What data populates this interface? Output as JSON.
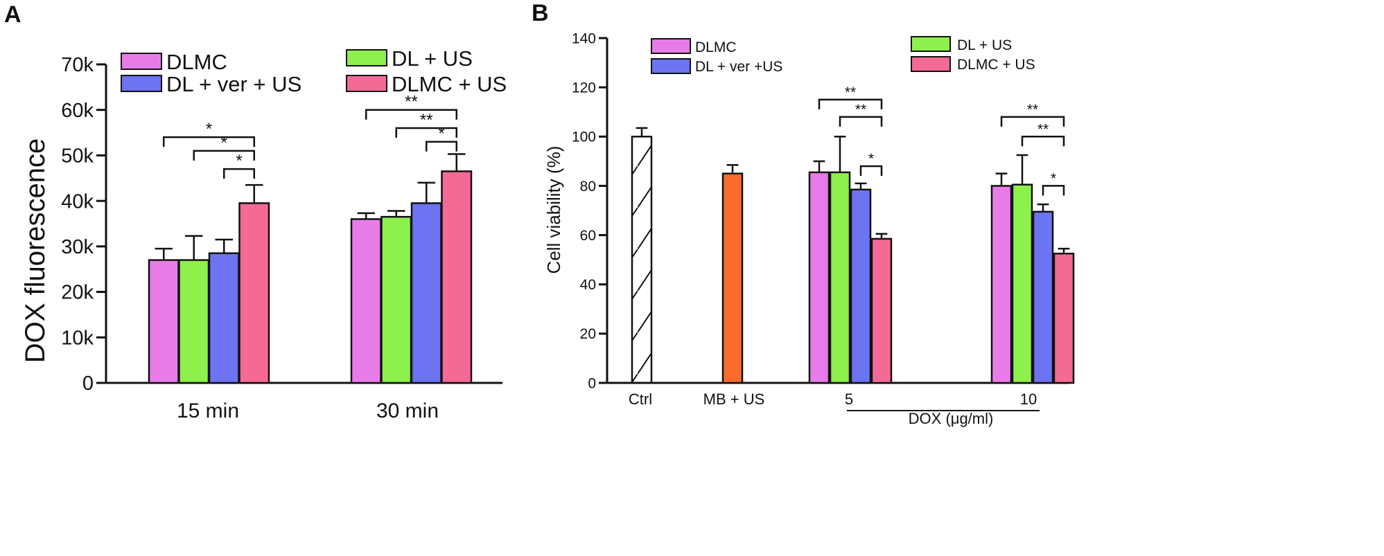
{
  "colors": {
    "dlmc": "#e77be8",
    "dl_us": "#8ef04d",
    "dl_ver_us": "#6c74f2",
    "dlmc_us": "#f56a94",
    "mb_us": "#f96b2c",
    "ctrl": "#ffffff",
    "axis": "#111111"
  },
  "chart_data": [
    {
      "panel": "A",
      "type": "bar",
      "title": "",
      "xlabel": "",
      "ylabel": "DOX fluorescence",
      "ylim": [
        0,
        70000
      ],
      "ticks": [
        {
          "value": 0,
          "label": "0"
        },
        {
          "value": 10000,
          "label": "10k"
        },
        {
          "value": 20000,
          "label": "20k"
        },
        {
          "value": 30000,
          "label": "30k"
        },
        {
          "value": 40000,
          "label": "40k"
        },
        {
          "value": 50000,
          "label": "50k"
        },
        {
          "value": 60000,
          "label": "60k"
        },
        {
          "value": 70000,
          "label": "70k"
        }
      ],
      "categories": [
        "15 min",
        "30 min"
      ],
      "legend": [
        {
          "name": "DLMC",
          "color_key": "dlmc"
        },
        {
          "name": "DL + US",
          "color_key": "dl_us"
        },
        {
          "name": "DL + ver + US",
          "color_key": "dl_ver_us"
        },
        {
          "name": "DLMC + US",
          "color_key": "dlmc_us"
        }
      ],
      "series": [
        {
          "name": "DLMC",
          "color_key": "dlmc",
          "values": [
            27000,
            36000
          ],
          "errors": [
            2500,
            1300
          ]
        },
        {
          "name": "DL + US",
          "color_key": "dl_us",
          "values": [
            27000,
            36500
          ],
          "errors": [
            5300,
            1300
          ]
        },
        {
          "name": "DL + ver + US",
          "color_key": "dl_ver_us",
          "values": [
            28500,
            39500
          ],
          "errors": [
            3000,
            4500
          ]
        },
        {
          "name": "DLMC + US",
          "color_key": "dlmc_us",
          "values": [
            39500,
            46500
          ],
          "errors": [
            4000,
            3800
          ]
        }
      ],
      "significance": [
        {
          "group": 0,
          "from": 0,
          "to": 3,
          "y": 54000,
          "label": "*"
        },
        {
          "group": 0,
          "from": 1,
          "to": 3,
          "y": 51000,
          "label": "*"
        },
        {
          "group": 0,
          "from": 2,
          "to": 3,
          "y": 47000,
          "label": "*"
        },
        {
          "group": 1,
          "from": 0,
          "to": 3,
          "y": 60000,
          "label": "**"
        },
        {
          "group": 1,
          "from": 1,
          "to": 3,
          "y": 56000,
          "label": "**"
        },
        {
          "group": 1,
          "from": 2,
          "to": 3,
          "y": 53000,
          "label": "*"
        }
      ]
    },
    {
      "panel": "B",
      "type": "bar",
      "title": "",
      "xlabel": "DOX (μg/ml)",
      "ylabel": "Cell viability (%)",
      "ylim": [
        0,
        140
      ],
      "ticks": [
        {
          "value": 0,
          "label": "0"
        },
        {
          "value": 20,
          "label": "20"
        },
        {
          "value": 40,
          "label": "40"
        },
        {
          "value": 60,
          "label": "60"
        },
        {
          "value": 80,
          "label": "80"
        },
        {
          "value": 100,
          "label": "100"
        },
        {
          "value": 120,
          "label": "120"
        },
        {
          "value": 140,
          "label": "140"
        }
      ],
      "categories": [
        "Ctrl",
        "MB + US",
        "5",
        "10"
      ],
      "legend": [
        {
          "name": "DLMC",
          "color_key": "dlmc"
        },
        {
          "name": "DL + ver +US",
          "color_key": "dl_ver_us"
        },
        {
          "name": "DL + US",
          "color_key": "dl_us"
        },
        {
          "name": "DLMC + US",
          "color_key": "dlmc_us"
        }
      ],
      "single_bars": [
        {
          "category": "Ctrl",
          "value": 100,
          "error": 3.5,
          "color_key": "ctrl",
          "hatched": true
        },
        {
          "category": "MB + US",
          "value": 85,
          "error": 3.5,
          "color_key": "mb_us",
          "hatched": false
        }
      ],
      "groups": [
        {
          "category": "5",
          "bars": [
            {
              "name": "DLMC",
              "color_key": "dlmc",
              "value": 85.5,
              "error": 4.5
            },
            {
              "name": "DL + US",
              "color_key": "dl_us",
              "value": 85.5,
              "error": 14.5
            },
            {
              "name": "DL + ver + US",
              "color_key": "dl_ver_us",
              "value": 78.5,
              "error": 2.5
            },
            {
              "name": "DLMC + US",
              "color_key": "dlmc_us",
              "value": 58.5,
              "error": 2
            }
          ]
        },
        {
          "category": "10",
          "bars": [
            {
              "name": "DLMC",
              "color_key": "dlmc",
              "value": 80,
              "error": 5
            },
            {
              "name": "DL + US",
              "color_key": "dl_us",
              "value": 80.5,
              "error": 12
            },
            {
              "name": "DL + ver + US",
              "color_key": "dl_ver_us",
              "value": 69.5,
              "error": 3
            },
            {
              "name": "DLMC + US",
              "color_key": "dlmc_us",
              "value": 52.5,
              "error": 2
            }
          ]
        }
      ],
      "significance": [
        {
          "group": 0,
          "from": 0,
          "to": 3,
          "y": 115,
          "label": "**"
        },
        {
          "group": 0,
          "from": 1,
          "to": 3,
          "y": 108,
          "label": "**"
        },
        {
          "group": 0,
          "from": 2,
          "to": 3,
          "y": 88,
          "label": "*"
        },
        {
          "group": 1,
          "from": 0,
          "to": 3,
          "y": 108,
          "label": "**"
        },
        {
          "group": 1,
          "from": 1,
          "to": 3,
          "y": 100,
          "label": "**"
        },
        {
          "group": 1,
          "from": 2,
          "to": 3,
          "y": 80,
          "label": "*"
        }
      ]
    }
  ]
}
